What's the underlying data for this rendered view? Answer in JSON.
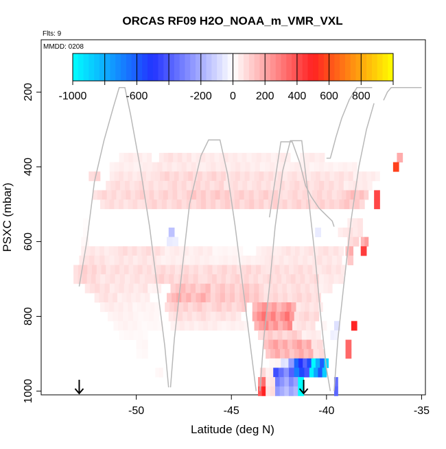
{
  "chart_data": {
    "type": "heatmap",
    "title": "ORCAS RF09 H2O_NOAA_m_VMR_VXL",
    "flights_label": "Flts: 9",
    "date_label": "MMDD: 0208",
    "xlabel": "Latitude (deg N)",
    "ylabel": "PSXC (mbar)",
    "xlim": [
      -55,
      -34.8
    ],
    "ylim": [
      1010,
      60
    ],
    "x_ticks": [
      -50,
      -45,
      -40,
      -35
    ],
    "x_tick_labels": [
      "-50",
      "-45",
      "-40",
      "-35"
    ],
    "y_ticks": [
      200,
      400,
      600,
      800,
      1000
    ],
    "y_tick_labels": [
      "200",
      "400",
      "600",
      "800",
      "1000"
    ],
    "colorbar": {
      "range": [
        -1000,
        1000
      ],
      "ticks": [
        -1000,
        -600,
        -200,
        0,
        200,
        400,
        600,
        800
      ],
      "tick_labels": [
        "-1000",
        "-600",
        "-200",
        "0",
        "200",
        "400",
        "600",
        "800"
      ],
      "divisions": [
        -1000,
        -800,
        -600,
        -400,
        -200,
        0,
        200,
        400,
        600,
        800,
        1000
      ],
      "colors": {
        "low": "#00ffff",
        "mid_low": "#2233ff",
        "zero": "#ffffff",
        "mid_high": "#ff2222",
        "high": "#ffff00"
      }
    },
    "cell_width_deg": 0.25,
    "cell_height_mbar": 25,
    "rows": [
      {
        "p": 375,
        "cells": [
          [
            -50.9,
            -49.2,
            40
          ],
          [
            -48.8,
            -47.1,
            60
          ],
          [
            -47.1,
            -44.2,
            45
          ],
          [
            -44.2,
            -41.9,
            40
          ],
          [
            -41.4,
            -40.1,
            40
          ],
          [
            -36.3,
            -36.0,
            250
          ]
        ]
      },
      {
        "p": 400,
        "cells": [
          [
            -51.4,
            -49.4,
            35
          ],
          [
            -49.4,
            -46.6,
            50
          ],
          [
            -46.6,
            -43.5,
            45
          ],
          [
            -43.5,
            -40.9,
            35
          ],
          [
            -40.9,
            -38.4,
            30
          ],
          [
            -36.5,
            -36.2,
            750
          ]
        ]
      },
      {
        "p": 425,
        "cells": [
          [
            -52.5,
            -51.9,
            100
          ],
          [
            -51.4,
            -49.0,
            55
          ],
          [
            -49.0,
            -45.3,
            85
          ],
          [
            -45.3,
            -42.3,
            70
          ],
          [
            -42.3,
            -38.6,
            60
          ],
          [
            -38.6,
            -37.2,
            40
          ]
        ]
      },
      {
        "p": 450,
        "cells": [
          [
            -51.6,
            -48.6,
            70
          ],
          [
            -48.6,
            -45.4,
            80
          ],
          [
            -45.4,
            -42.2,
            65
          ],
          [
            -42.2,
            -39.1,
            75
          ],
          [
            -39.1,
            -37.6,
            45
          ]
        ]
      },
      {
        "p": 475,
        "cells": [
          [
            -52.3,
            -50.3,
            80
          ],
          [
            -50.3,
            -47.6,
            90
          ],
          [
            -47.6,
            -45.1,
            110
          ],
          [
            -45.1,
            -42.3,
            95
          ],
          [
            -42.3,
            -39.2,
            80
          ],
          [
            -39.2,
            -37.8,
            130
          ],
          [
            -37.5,
            -37.2,
            550
          ]
        ]
      },
      {
        "p": 500,
        "cells": [
          [
            -51.9,
            -49.7,
            70
          ],
          [
            -49.7,
            -47.1,
            85
          ],
          [
            -47.1,
            -43.3,
            95
          ],
          [
            -43.3,
            -39.6,
            90
          ],
          [
            -39.6,
            -38.0,
            110
          ],
          [
            -37.5,
            -37.2,
            550
          ]
        ]
      },
      {
        "p": 550,
        "cells": [
          [
            -52.8,
            -52.5,
            10
          ],
          [
            -38.9,
            -38.1,
            50
          ]
        ]
      },
      {
        "p": 575,
        "cells": [
          [
            -52.8,
            -52.5,
            15
          ],
          [
            -48.3,
            -48.0,
            -120
          ],
          [
            -40.6,
            -40.3,
            -40
          ],
          [
            -39.4,
            -38.1,
            55
          ]
        ]
      },
      {
        "p": 600,
        "cells": [
          [
            -52.9,
            -52.5,
            20
          ],
          [
            -48.4,
            -47.8,
            -40
          ],
          [
            -38.9,
            -38.3,
            100
          ],
          [
            -38.2,
            -37.8,
            220
          ]
        ]
      },
      {
        "p": 625,
        "cells": [
          [
            -52.9,
            -51.2,
            50
          ],
          [
            -51.2,
            -48.5,
            70
          ],
          [
            -48.5,
            -46.0,
            40
          ],
          [
            -46.0,
            -44.4,
            20
          ],
          [
            -43.7,
            -42.6,
            40
          ],
          [
            -42.6,
            -40.7,
            55
          ],
          [
            -40.7,
            -39.1,
            60
          ],
          [
            -39.0,
            -38.6,
            190
          ],
          [
            -38.2,
            -37.9,
            580
          ]
        ]
      },
      {
        "p": 650,
        "cells": [
          [
            -53.0,
            -51.4,
            65
          ],
          [
            -51.4,
            -48.7,
            55
          ],
          [
            -48.7,
            -45.9,
            35
          ],
          [
            -45.9,
            -43.5,
            30
          ],
          [
            -43.5,
            -41.0,
            50
          ],
          [
            -41.0,
            -39.2,
            55
          ],
          [
            -38.9,
            -38.6,
            160
          ]
        ]
      },
      {
        "p": 675,
        "cells": [
          [
            -53.3,
            -51.6,
            90
          ],
          [
            -51.6,
            -49.2,
            70
          ],
          [
            -49.2,
            -46.0,
            75
          ],
          [
            -46.0,
            -43.2,
            80
          ],
          [
            -43.2,
            -40.5,
            70
          ],
          [
            -40.5,
            -39.0,
            60
          ]
        ]
      },
      {
        "p": 700,
        "cells": [
          [
            -53.3,
            -51.9,
            85
          ],
          [
            -51.9,
            -49.3,
            60
          ],
          [
            -49.3,
            -46.5,
            90
          ],
          [
            -46.5,
            -43.6,
            85
          ],
          [
            -43.6,
            -40.4,
            75
          ],
          [
            -40.4,
            -39.1,
            45
          ]
        ]
      },
      {
        "p": 725,
        "cells": [
          [
            -52.7,
            -51.4,
            70
          ],
          [
            -51.4,
            -49.4,
            55
          ],
          [
            -49.4,
            -48.7,
            30
          ],
          [
            -48.2,
            -46.1,
            130
          ],
          [
            -46.1,
            -43.3,
            110
          ],
          [
            -43.3,
            -40.4,
            70
          ],
          [
            -40.4,
            -39.7,
            40
          ]
        ]
      },
      {
        "p": 750,
        "cells": [
          [
            -52.2,
            -51.0,
            60
          ],
          [
            -51.0,
            -49.3,
            40
          ],
          [
            -48.4,
            -46.1,
            160
          ],
          [
            -46.1,
            -43.3,
            120
          ],
          [
            -43.3,
            -40.3,
            80
          ]
        ]
      },
      {
        "p": 775,
        "cells": [
          [
            -51.9,
            -50.2,
            40
          ],
          [
            -50.2,
            -48.8,
            25
          ],
          [
            -48.5,
            -46.3,
            100
          ],
          [
            -46.3,
            -44.2,
            95
          ],
          [
            -43.9,
            -41.6,
            200
          ],
          [
            -41.6,
            -40.2,
            60
          ]
        ]
      },
      {
        "p": 800,
        "cells": [
          [
            -51.5,
            -49.9,
            30
          ],
          [
            -49.9,
            -48.8,
            20
          ],
          [
            -48.3,
            -46.1,
            70
          ],
          [
            -46.1,
            -44.5,
            60
          ],
          [
            -43.9,
            -41.7,
            260
          ],
          [
            -41.7,
            -40.4,
            80
          ]
        ]
      },
      {
        "p": 825,
        "cells": [
          [
            -51.2,
            -49.7,
            25
          ],
          [
            -49.7,
            -48.6,
            15
          ],
          [
            -48.2,
            -45.5,
            40
          ],
          [
            -45.5,
            -44.1,
            30
          ],
          [
            -43.8,
            -41.8,
            220
          ],
          [
            -41.8,
            -40.6,
            60
          ],
          [
            -40.3,
            -40.0,
            30
          ],
          [
            -39.6,
            -39.3,
            -60
          ],
          [
            -38.7,
            -38.4,
            650
          ]
        ]
      },
      {
        "p": 850,
        "cells": [
          [
            -50.9,
            -49.4,
            15
          ],
          [
            -43.6,
            -41.3,
            100
          ],
          [
            -41.3,
            -40.3,
            40
          ],
          [
            -39.8,
            -39.4,
            -30
          ]
        ]
      },
      {
        "p": 875,
        "cells": [
          [
            -50.0,
            -49.4,
            20
          ],
          [
            -43.3,
            -40.8,
            180
          ],
          [
            -40.8,
            -40.2,
            80
          ],
          [
            -39.0,
            -38.7,
            450
          ]
        ]
      },
      {
        "p": 900,
        "cells": [
          [
            -50.0,
            -49.4,
            15
          ],
          [
            -43.2,
            -40.7,
            160
          ],
          [
            -40.7,
            -40.1,
            80
          ],
          [
            -39.0,
            -38.7,
            450
          ]
        ]
      },
      {
        "p": 925,
        "cells": [
          [
            -43.0,
            -42.4,
            25
          ],
          [
            -42.4,
            -42.0,
            -60
          ],
          [
            -42.0,
            -41.7,
            -200
          ],
          [
            -41.7,
            -40.8,
            -500
          ],
          [
            -40.8,
            -39.9,
            -800
          ]
        ]
      },
      {
        "p": 950,
        "cells": [
          [
            -49.0,
            -48.6,
            20
          ],
          [
            -43.5,
            -43.2,
            120
          ],
          [
            -43.2,
            -42.8,
            40
          ],
          [
            -42.8,
            -41.7,
            -350
          ],
          [
            -41.7,
            -40.9,
            -550
          ],
          [
            -40.9,
            -40.0,
            -780
          ]
        ]
      },
      {
        "p": 975,
        "cells": [
          [
            -43.6,
            -43.2,
            330
          ],
          [
            -43.2,
            -42.7,
            60
          ],
          [
            -42.7,
            -41.5,
            -260
          ],
          [
            -41.5,
            -41.2,
            -900
          ],
          [
            -39.6,
            -39.4,
            -280
          ]
        ]
      },
      {
        "p": 1000,
        "cells": [
          [
            -43.6,
            -43.2,
            500
          ],
          [
            -43.2,
            -42.7,
            80
          ],
          [
            -42.7,
            -41.5,
            -200
          ],
          [
            -41.5,
            -41.2,
            -950
          ],
          [
            -39.6,
            -39.4,
            -300
          ]
        ]
      }
    ],
    "flight_track": [
      [
        [
          -53.0,
          720
        ],
        [
          -52.6,
          600
        ],
        [
          -52.2,
          440
        ],
        [
          -51.7,
          330
        ],
        [
          -51.2,
          240
        ],
        [
          -50.9,
          188
        ],
        [
          -50.6,
          188
        ],
        [
          -50.3,
          260
        ],
        [
          -49.8,
          400
        ],
        [
          -49.3,
          560
        ],
        [
          -48.9,
          720
        ],
        [
          -48.5,
          880
        ],
        [
          -48.3,
          990
        ]
      ],
      [
        [
          -48.2,
          990
        ],
        [
          -48.0,
          860
        ],
        [
          -47.6,
          680
        ],
        [
          -47.2,
          500
        ],
        [
          -46.6,
          370
        ],
        [
          -46.2,
          328
        ],
        [
          -45.6,
          328
        ],
        [
          -45.2,
          420
        ],
        [
          -44.8,
          560
        ],
        [
          -44.4,
          720
        ],
        [
          -44.0,
          880
        ],
        [
          -43.7,
          1000
        ]
      ],
      [
        [
          -43.5,
          1000
        ],
        [
          -43.3,
          860
        ],
        [
          -43.0,
          720
        ],
        [
          -42.7,
          560
        ],
        [
          -42.3,
          410
        ],
        [
          -41.9,
          330
        ],
        [
          -41.3,
          330
        ],
        [
          -41.0,
          460
        ],
        [
          -40.6,
          640
        ],
        [
          -40.3,
          800
        ],
        [
          -40.0,
          940
        ],
        [
          -39.8,
          1000
        ]
      ],
      [
        [
          -39.6,
          1000
        ],
        [
          -39.4,
          860
        ],
        [
          -39.1,
          720
        ],
        [
          -38.7,
          540
        ],
        [
          -38.3,
          400
        ],
        [
          -37.9,
          300
        ],
        [
          -37.5,
          230
        ]
      ],
      [
        [
          -43.0,
          535
        ],
        [
          -42.4,
          333
        ],
        [
          -41.8,
          333
        ],
        [
          -41.4,
          390
        ],
        [
          -41.1,
          450
        ],
        [
          -40.8,
          480
        ],
        [
          -40.4,
          510
        ],
        [
          -40.0,
          530
        ],
        [
          -39.7,
          545
        ],
        [
          -39.6,
          560
        ]
      ],
      [
        [
          -40.0,
          377
        ],
        [
          -39.8,
          377
        ],
        [
          -39.7,
          358
        ],
        [
          -39.5,
          320
        ],
        [
          -39.2,
          270
        ],
        [
          -38.8,
          220
        ],
        [
          -38.4,
          188
        ],
        [
          -37.6,
          188
        ]
      ],
      [
        [
          -37.0,
          222
        ],
        [
          -36.8,
          200
        ],
        [
          -36.6,
          188
        ],
        [
          -35.0,
          188
        ]
      ]
    ],
    "arrows": [
      -53.0,
      -41.2
    ]
  }
}
